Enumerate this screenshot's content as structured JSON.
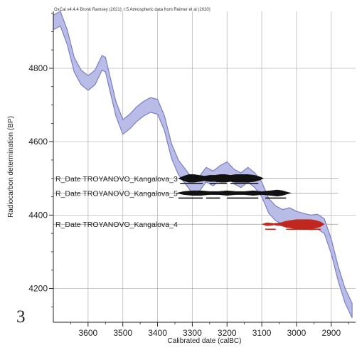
{
  "chart_data": {
    "type": "line",
    "header": "OxCal v4.4.4 Bronk Ramsey (2021); r:5 Atmospheric data from Reimer et al (2020)",
    "xlabel": "Calibrated date (calBC)",
    "ylabel": "Radiocarbon determination (BP)",
    "panel_label": "3",
    "x_ticks": [
      "3600",
      "3500",
      "3400",
      "3300",
      "3200",
      "3100",
      "3000",
      "2900"
    ],
    "y_ticks": [
      "4800",
      "4600",
      "4400",
      "4200"
    ],
    "xlim": [
      3700,
      2830
    ],
    "ylim": [
      4108,
      4955
    ],
    "grid": true,
    "calibration_curve": {
      "color": "#7b7fc4",
      "fill": "#b9bce6",
      "x": [
        3700,
        3680,
        3660,
        3640,
        3620,
        3600,
        3580,
        3560,
        3550,
        3540,
        3520,
        3500,
        3480,
        3460,
        3440,
        3420,
        3400,
        3380,
        3360,
        3340,
        3320,
        3300,
        3280,
        3260,
        3240,
        3220,
        3200,
        3180,
        3160,
        3140,
        3120,
        3100,
        3080,
        3060,
        3040,
        3020,
        3000,
        2980,
        2960,
        2940,
        2920,
        2900,
        2880,
        2860,
        2840
      ],
      "y": [
        4925,
        4935,
        4885,
        4810,
        4775,
        4760,
        4775,
        4815,
        4810,
        4770,
        4690,
        4640,
        4655,
        4675,
        4690,
        4700,
        4695,
        4650,
        4575,
        4530,
        4505,
        4480,
        4485,
        4510,
        4500,
        4515,
        4525,
        4505,
        4495,
        4510,
        4495,
        4470,
        4425,
        4405,
        4395,
        4400,
        4390,
        4385,
        4380,
        4382,
        4370,
        4315,
        4240,
        4180,
        4140
      ],
      "band": 20
    },
    "dates": [
      {
        "label": "R_Date TROYANOVO_Kangalova_3",
        "bp": 4500,
        "color": "#111111",
        "range_bars": [
          [
            3335,
            3270
          ],
          [
            3250,
            3200
          ],
          [
            3190,
            3110
          ]
        ],
        "density": [
          [
            3340,
            0
          ],
          [
            3325,
            3
          ],
          [
            3310,
            5
          ],
          [
            3295,
            5
          ],
          [
            3280,
            4
          ],
          [
            3265,
            3
          ],
          [
            3250,
            4
          ],
          [
            3235,
            4
          ],
          [
            3220,
            5
          ],
          [
            3205,
            5
          ],
          [
            3190,
            4
          ],
          [
            3175,
            5
          ],
          [
            3160,
            5
          ],
          [
            3140,
            5
          ],
          [
            3120,
            4
          ],
          [
            3105,
            2
          ],
          [
            3095,
            0
          ]
        ]
      },
      {
        "label": "R_Date TROYANOVO_Kangalova_5",
        "bp": 4460,
        "color": "#111111",
        "range_bars": [
          [
            3340,
            3270
          ],
          [
            3260,
            3220
          ],
          [
            3200,
            3110
          ],
          [
            3090,
            3030
          ]
        ],
        "density": [
          [
            3345,
            0
          ],
          [
            3325,
            2
          ],
          [
            3300,
            3
          ],
          [
            3275,
            3
          ],
          [
            3250,
            2
          ],
          [
            3225,
            2
          ],
          [
            3200,
            3
          ],
          [
            3175,
            2
          ],
          [
            3150,
            2
          ],
          [
            3125,
            3
          ],
          [
            3100,
            2
          ],
          [
            3075,
            3
          ],
          [
            3055,
            4
          ],
          [
            3040,
            3
          ],
          [
            3025,
            1
          ],
          [
            3015,
            0
          ]
        ]
      },
      {
        "label": "R_Date TROYANOVO_Kangalova_4",
        "bp": 4375,
        "color": "#c0281f",
        "range_bars": [
          [
            3090,
            3060
          ],
          [
            3030,
            2930
          ]
        ],
        "density": [
          [
            3100,
            0
          ],
          [
            3085,
            2
          ],
          [
            3065,
            1
          ],
          [
            3045,
            2
          ],
          [
            3030,
            4
          ],
          [
            3015,
            5
          ],
          [
            3000,
            6
          ],
          [
            2980,
            6
          ],
          [
            2960,
            6
          ],
          [
            2945,
            5
          ],
          [
            2930,
            3
          ],
          [
            2920,
            0
          ]
        ]
      }
    ]
  }
}
